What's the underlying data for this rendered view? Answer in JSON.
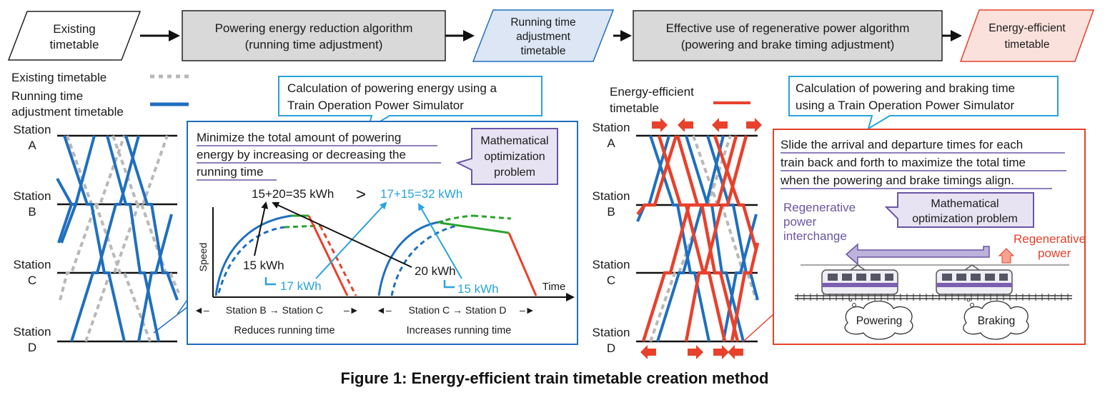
{
  "flow": {
    "existing": [
      "Existing",
      "timetable"
    ],
    "powering_algo": [
      "Powering energy reduction algorithm",
      "(running time adjustment)"
    ],
    "running_adj": [
      "Running time",
      "adjustment",
      "timetable"
    ],
    "regen_algo": [
      "Effective use of regenerative power algorithm",
      "(powering and brake timing adjustment)"
    ],
    "efficient": [
      "Energy-efficient",
      "timetable"
    ]
  },
  "left_legend": {
    "existing": "Existing timetable",
    "running_adj": [
      "Running time",
      "adjustment timetable"
    ]
  },
  "stations": [
    [
      "Station",
      "A"
    ],
    [
      "Station",
      "B"
    ],
    [
      "Station",
      "C"
    ],
    [
      "Station",
      "D"
    ]
  ],
  "callout_left": [
    "Calculation of powering energy using a",
    "Train Operation Power Simulator"
  ],
  "left_panel": {
    "description": [
      "Minimize the total amount of powering",
      "energy by increasing or decreasing the",
      "running time"
    ],
    "math_box": [
      "Mathematical",
      "optimization",
      "problem"
    ],
    "sum_left": "15+20=35 kWh",
    "gt": ">",
    "sum_right": "17+15=32 kWh",
    "speed_label": "Speed",
    "time_label": "Time",
    "kwh_15": "15 kWh",
    "kwh_17": "17 kWh",
    "kwh_20": "20 kWh",
    "kwh_15b": "15 kWh",
    "section_bc": "Station B → Station C",
    "section_cd": "Station C → Station D",
    "reduces": "Reduces running time",
    "increases": "Increases running time"
  },
  "right_legend": [
    "Energy-efficient",
    "timetable"
  ],
  "callout_right": [
    "Calculation of powering and braking time",
    "using a Train Operation Power Simulator"
  ],
  "right_panel": {
    "description": [
      "Slide the arrival and departure times for each",
      "train back and forth to maximize the total time",
      "when the powering and brake timings align."
    ],
    "math_box": [
      "Mathematical",
      "optimization problem"
    ],
    "regen_interchange": [
      "Regenerative",
      "power",
      "interchange"
    ],
    "regen_power": [
      "Regenerative",
      "power"
    ],
    "powering": "Powering",
    "braking": "Braking"
  },
  "caption": "Figure 1:  Energy-efficient train timetable creation method",
  "colors": {
    "blue": "#1f6fbf",
    "red": "#e8412c",
    "gray": "#b8b8b8",
    "cyan": "#29a3dc",
    "green": "#2ca32c",
    "purple": "#6a55a5",
    "box_gray": "#d9d9d9",
    "light_blue": "#dce6f4",
    "light_red": "#fbe1dc",
    "light_purple": "#e7e3f2"
  }
}
